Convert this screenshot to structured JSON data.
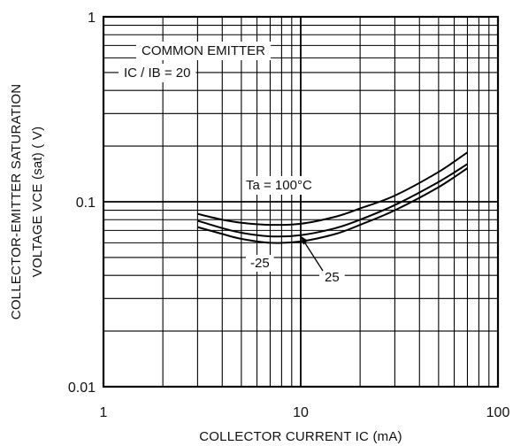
{
  "chart_data": {
    "type": "line",
    "xscale": "log",
    "yscale": "log",
    "xlim": [
      1,
      100
    ],
    "ylim": [
      0.01,
      1
    ],
    "x_ticks": [
      "1",
      "10",
      "100"
    ],
    "y_ticks": [
      "0.01",
      "0.1",
      "1"
    ],
    "xlabel": "COLLECTOR CURRENT  IC (mA)",
    "ylabel_lines": [
      "COLLECTOR-EMITTER SATURATION",
      "VOLTAGE  VCE (sat) ( V)"
    ],
    "grid": true,
    "annotations": {
      "line1": "COMMON EMITTER",
      "line2": "IC / IB = 20"
    },
    "series": [
      {
        "name": "Ta = 100°C",
        "x": [
          3,
          4,
          5,
          7,
          10,
          15,
          20,
          30,
          50,
          70
        ],
        "y": [
          0.086,
          0.08,
          0.077,
          0.075,
          0.076,
          0.083,
          0.092,
          0.108,
          0.145,
          0.185
        ]
      },
      {
        "name": "25",
        "x": [
          3,
          4,
          5,
          7,
          10,
          15,
          20,
          30,
          50,
          70
        ],
        "y": [
          0.079,
          0.072,
          0.068,
          0.065,
          0.066,
          0.072,
          0.08,
          0.096,
          0.128,
          0.16
        ]
      },
      {
        "name": "-25",
        "x": [
          3,
          4,
          5,
          7,
          10,
          15,
          20,
          30,
          50,
          70
        ],
        "y": [
          0.073,
          0.067,
          0.063,
          0.06,
          0.061,
          0.067,
          0.075,
          0.09,
          0.12,
          0.152
        ]
      }
    ]
  }
}
